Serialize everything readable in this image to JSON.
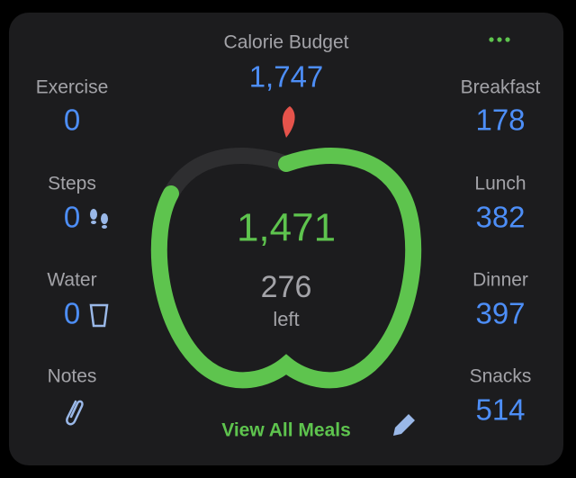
{
  "header": {
    "title": "Calorie Budget",
    "budget": "1,747"
  },
  "left": [
    {
      "label": "Exercise",
      "value": "0"
    },
    {
      "label": "Steps",
      "value": "0"
    },
    {
      "label": "Water",
      "value": "0"
    },
    {
      "label": "Notes"
    }
  ],
  "right": [
    {
      "label": "Breakfast",
      "value": "178"
    },
    {
      "label": "Lunch",
      "value": "382"
    },
    {
      "label": "Dinner",
      "value": "397"
    },
    {
      "label": "Snacks",
      "value": "514"
    }
  ],
  "center": {
    "consumed": "1,471",
    "remaining": "276",
    "remaining_label": "left"
  },
  "footer": {
    "link": "View All Meals"
  }
}
